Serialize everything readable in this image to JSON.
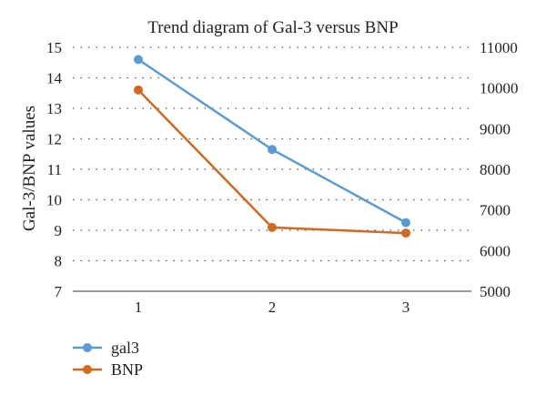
{
  "chart_data": {
    "type": "line",
    "title": "Trend diagram of Gal-3 versus BNP",
    "ylabel": "Gal-3/BNP values",
    "categories": [
      "1",
      "2",
      "3"
    ],
    "ylim_left": [
      7,
      15
    ],
    "ylim_right": [
      5000,
      11000
    ],
    "yticks_left": [
      "7",
      "8",
      "9",
      "10",
      "11",
      "12",
      "13",
      "14",
      "15"
    ],
    "yticks_right": [
      "5000",
      "6000",
      "7000",
      "8000",
      "9000",
      "10000",
      "11000"
    ],
    "grid": true,
    "legend_position": "bottom-left",
    "series": [
      {
        "name": "gal3",
        "axis": "left",
        "color": "#5B9BD5",
        "values": [
          14.6,
          11.65,
          9.25
        ]
      },
      {
        "name": "BNP",
        "axis": "right",
        "color": "#D2691E",
        "values": [
          9950,
          6570,
          6430
        ]
      }
    ]
  }
}
